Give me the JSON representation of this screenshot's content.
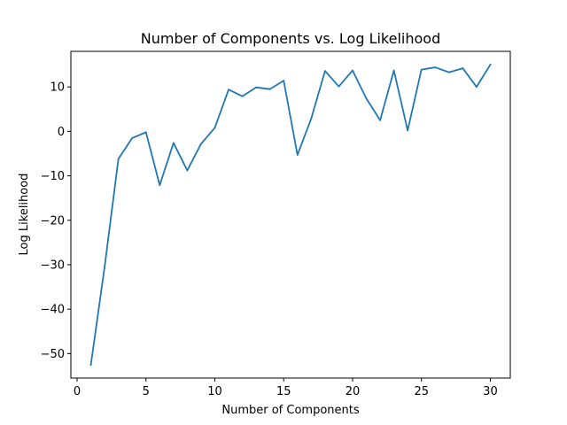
{
  "chart_data": {
    "type": "line",
    "title": "Number of Components vs. Log Likelihood",
    "xlabel": "Number of Components",
    "ylabel": "Log Likelihood",
    "xlim": [
      -0.45,
      31.45
    ],
    "ylim": [
      -55.5,
      18.0
    ],
    "x_ticks": [
      0,
      5,
      10,
      15,
      20,
      25,
      30
    ],
    "x_tick_labels": [
      "0",
      "5",
      "10",
      "15",
      "20",
      "25",
      "30"
    ],
    "y_ticks": [
      10,
      0,
      -10,
      -20,
      -30,
      -40,
      -50
    ],
    "y_tick_labels": [
      "10",
      "0",
      "−10",
      "−20",
      "−30",
      "−40",
      "−50"
    ],
    "grid": false,
    "legend": "none",
    "series": [
      {
        "color": "#1f77b4",
        "x": [
          1,
          2,
          3,
          4,
          5,
          6,
          7,
          8,
          9,
          10,
          11,
          12,
          13,
          14,
          15,
          16,
          17,
          18,
          19,
          20,
          21,
          22,
          23,
          24,
          25,
          26,
          27,
          28,
          29,
          30
        ],
        "values": [
          -52.5,
          -30.5,
          -6.2,
          -1.5,
          -0.2,
          -12.1,
          -2.6,
          -8.8,
          -2.8,
          0.8,
          9.4,
          7.9,
          9.9,
          9.5,
          11.4,
          -5.3,
          2.9,
          13.6,
          10.1,
          13.7,
          7.4,
          2.5,
          13.7,
          0.2,
          13.9,
          14.4,
          13.3,
          14.2,
          10.0,
          15.0
        ]
      }
    ]
  }
}
